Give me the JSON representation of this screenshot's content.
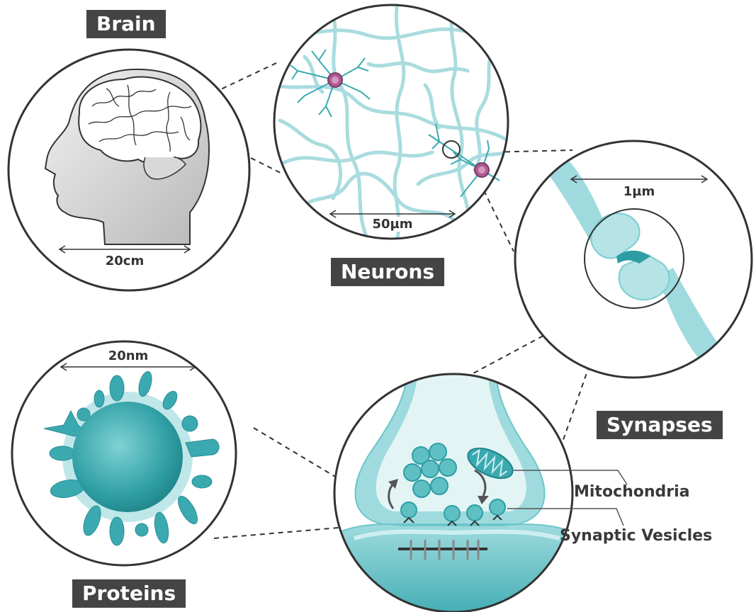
{
  "labels": {
    "brain": "Brain",
    "neurons": "Neurons",
    "synapses": "Synapses",
    "proteins": "Proteins"
  },
  "scales": {
    "brain": "20cm",
    "neurons": "50µm",
    "synapses": "1µm",
    "proteins": "20nm"
  },
  "callouts": {
    "mitochondria": "Mitochondria",
    "vesicles": "Synaptic Vesicles"
  },
  "colors": {
    "teal": "#5fc0c4",
    "teal_dark": "#2e9da3",
    "teal_light": "#bfe7ea",
    "tag_bg": "#444444",
    "outline": "#333333",
    "neuron_nucleus": "#b05a92"
  }
}
